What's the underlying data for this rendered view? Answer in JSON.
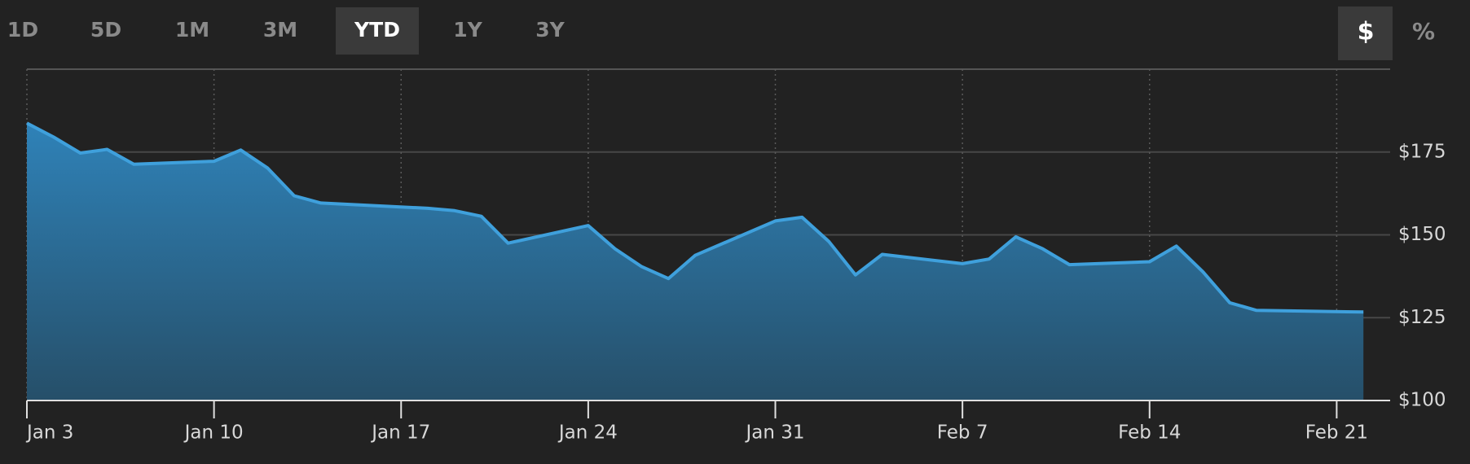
{
  "ranges": [
    "1D",
    "5D",
    "1M",
    "3M",
    "YTD",
    "1Y",
    "3Y"
  ],
  "active_range": 4,
  "units": [
    "$",
    "%"
  ],
  "active_unit": 0,
  "chart_data": {
    "type": "area",
    "x": [
      "Jan 3",
      "Jan 4",
      "Jan 5",
      "Jan 6",
      "Jan 7",
      "Jan 10",
      "Jan 11",
      "Jan 12",
      "Jan 13",
      "Jan 14",
      "Jan 18",
      "Jan 19",
      "Jan 20",
      "Jan 21",
      "Jan 24",
      "Jan 25",
      "Jan 26",
      "Jan 27",
      "Jan 28",
      "Jan 31",
      "Feb 1",
      "Feb 2",
      "Feb 3",
      "Feb 4",
      "Feb 7",
      "Feb 8",
      "Feb 9",
      "Feb 10",
      "Feb 11",
      "Feb 14",
      "Feb 15",
      "Feb 16",
      "Feb 17",
      "Feb 18",
      "Feb 22"
    ],
    "series": [
      {
        "color": "#3fa0dc",
        "values": [
          183.7,
          179.5,
          174.7,
          175.8,
          171.3,
          172.2,
          175.6,
          170.2,
          161.8,
          159.6,
          158.0,
          157.3,
          155.6,
          147.5,
          152.8,
          145.8,
          140.4,
          136.8,
          143.8,
          154.2,
          155.3,
          148.0,
          137.9,
          144.1,
          141.3,
          142.7,
          149.4,
          145.8,
          141.0,
          141.9,
          146.6,
          138.8,
          129.5,
          127.2,
          126.7
        ]
      }
    ],
    "xlim": [
      "Jan 3",
      "Feb 23"
    ],
    "xticks": [
      "Jan 3",
      "Jan 10",
      "Jan 17",
      "Jan 24",
      "Jan 31",
      "Feb 7",
      "Feb 14",
      "Feb 21"
    ],
    "ylim": [
      100,
      200
    ],
    "yticks": [
      {
        "value": 100,
        "label": "$100"
      },
      {
        "value": 125,
        "label": "$125"
      },
      {
        "value": 150,
        "label": "$150"
      },
      {
        "value": 175,
        "label": "$175"
      }
    ],
    "grid": true
  }
}
